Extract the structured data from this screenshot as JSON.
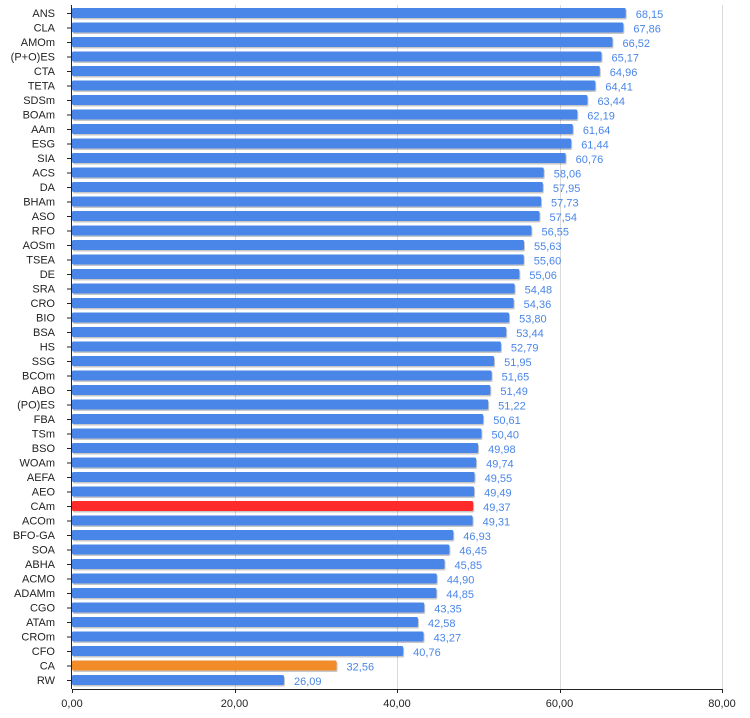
{
  "chart_data": {
    "type": "bar",
    "orientation": "horizontal",
    "categories": [
      "ANS",
      "CLA",
      "AMOm",
      "(P+O)ES",
      "CTA",
      "TETA",
      "SDSm",
      "BOAm",
      "AAm",
      "ESG",
      "SIA",
      "ACS",
      "DA",
      "BHAm",
      "ASO",
      "RFO",
      "AOSm",
      "TSEA",
      "DE",
      "SRA",
      "CRO",
      "BIO",
      "BSA",
      "HS",
      "SSG",
      "BCOm",
      "ABO",
      "(PO)ES",
      "FBA",
      "TSm",
      "BSO",
      "WOAm",
      "AEFA",
      "AEO",
      "CAm",
      "ACOm",
      "BFO-GA",
      "SOA",
      "ABHA",
      "ACMO",
      "ADAMm",
      "CGO",
      "ATAm",
      "CROm",
      "CFO",
      "CA",
      "RW"
    ],
    "values": [
      68.15,
      67.86,
      66.52,
      65.17,
      64.96,
      64.41,
      63.44,
      62.19,
      61.64,
      61.44,
      60.76,
      58.06,
      57.95,
      57.73,
      57.54,
      56.55,
      55.63,
      55.6,
      55.06,
      54.48,
      54.36,
      53.8,
      53.44,
      52.79,
      51.95,
      51.65,
      51.49,
      51.22,
      50.61,
      50.4,
      49.98,
      49.74,
      49.55,
      49.49,
      49.37,
      49.31,
      46.93,
      46.45,
      45.85,
      44.9,
      44.85,
      43.35,
      42.58,
      43.27,
      40.76,
      32.56,
      26.09
    ],
    "value_labels": [
      "68,15",
      "67,86",
      "66,52",
      "65,17",
      "64,96",
      "64,41",
      "63,44",
      "62,19",
      "61,64",
      "61,44",
      "60,76",
      "58,06",
      "57,95",
      "57,73",
      "57,54",
      "56,55",
      "55,63",
      "55,60",
      "55,06",
      "54,48",
      "54,36",
      "53,80",
      "53,44",
      "52,79",
      "51,95",
      "51,65",
      "51,49",
      "51,22",
      "50,61",
      "50,40",
      "49,98",
      "49,74",
      "49,55",
      "49,49",
      "49,37",
      "49,31",
      "46,93",
      "46,45",
      "45,85",
      "44,90",
      "44,85",
      "43,35",
      "42,58",
      "43,27",
      "40,76",
      "32,56",
      "26,09"
    ],
    "xlim": [
      0,
      80
    ],
    "x_ticks": [
      0,
      20,
      40,
      60,
      80
    ],
    "x_tick_labels": [
      "0,00",
      "20,00",
      "40,00",
      "60,00",
      "80,00"
    ],
    "grid": true,
    "title": "",
    "xlabel": "",
    "ylabel": "",
    "colors": {
      "default_bar": "#4a86e8",
      "value_label": "#4a86e8",
      "highlights": {
        "CAm": "#ff2a2a",
        "CA": "#f28c28"
      }
    }
  }
}
